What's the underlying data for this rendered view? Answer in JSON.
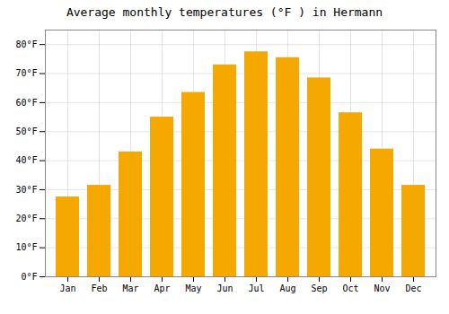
{
  "chart_data": {
    "type": "bar",
    "title": "Average monthly temperatures (°F ) in Hermann",
    "categories": [
      "Jan",
      "Feb",
      "Mar",
      "Apr",
      "May",
      "Jun",
      "Jul",
      "Aug",
      "Sep",
      "Oct",
      "Nov",
      "Dec"
    ],
    "values": [
      27.5,
      31.5,
      43.0,
      55.0,
      63.5,
      73.0,
      77.5,
      75.5,
      68.5,
      56.5,
      44.0,
      31.5
    ],
    "color": "#F5A800",
    "ylim": [
      0,
      85
    ],
    "yticks": [
      {
        "value": 0,
        "label": "0°F"
      },
      {
        "value": 10,
        "label": "10°F"
      },
      {
        "value": 20,
        "label": "20°F"
      },
      {
        "value": 30,
        "label": "30°F"
      },
      {
        "value": 40,
        "label": "40°F"
      },
      {
        "value": 50,
        "label": "50°F"
      },
      {
        "value": 60,
        "label": "60°F"
      },
      {
        "value": 70,
        "label": "70°F"
      },
      {
        "value": 80,
        "label": "80°F"
      }
    ],
    "grid": true
  }
}
